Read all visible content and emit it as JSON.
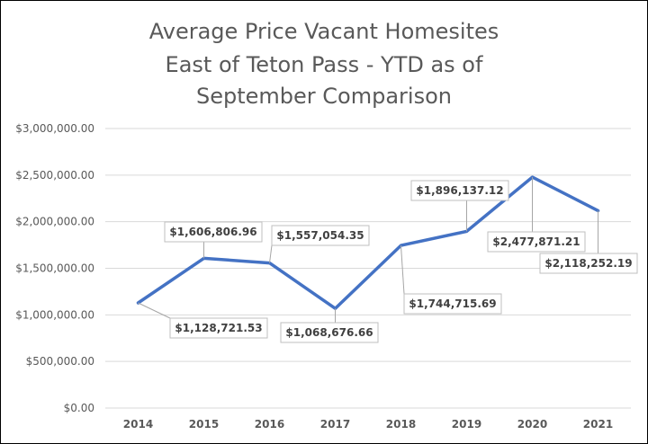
{
  "chart_data": {
    "type": "line",
    "title_lines": [
      "Average Price Vacant Homesites",
      "East of Teton Pass - YTD as of",
      "September Comparison"
    ],
    "categories": [
      "2014",
      "2015",
      "2016",
      "2017",
      "2018",
      "2019",
      "2020",
      "2021"
    ],
    "series": [
      {
        "values": [
          1128721.53,
          1606806.96,
          1557054.35,
          1068676.66,
          1744715.69,
          1896137.12,
          2477871.21,
          2118252.19
        ],
        "color": "#4472c4"
      }
    ],
    "data_labels": [
      "$1,128,721.53",
      "$1,606,806.96",
      "$1,557,054.35",
      "$1,068,676.66",
      "$1,744,715.69",
      "$1,896,137.12",
      "$2,477,871.21",
      "$2,118,252.19"
    ],
    "y_ticks": [
      0,
      500000,
      1000000,
      1500000,
      2000000,
      2500000,
      3000000
    ],
    "y_tick_labels": [
      "$0.00",
      "$500,000.00",
      "$1,000,000.00",
      "$1,500,000.00",
      "$2,000,000.00",
      "$2,500,000.00",
      "$3,000,000.00"
    ],
    "ylim": [
      0,
      3000000
    ],
    "grid": true,
    "legend": "none"
  }
}
